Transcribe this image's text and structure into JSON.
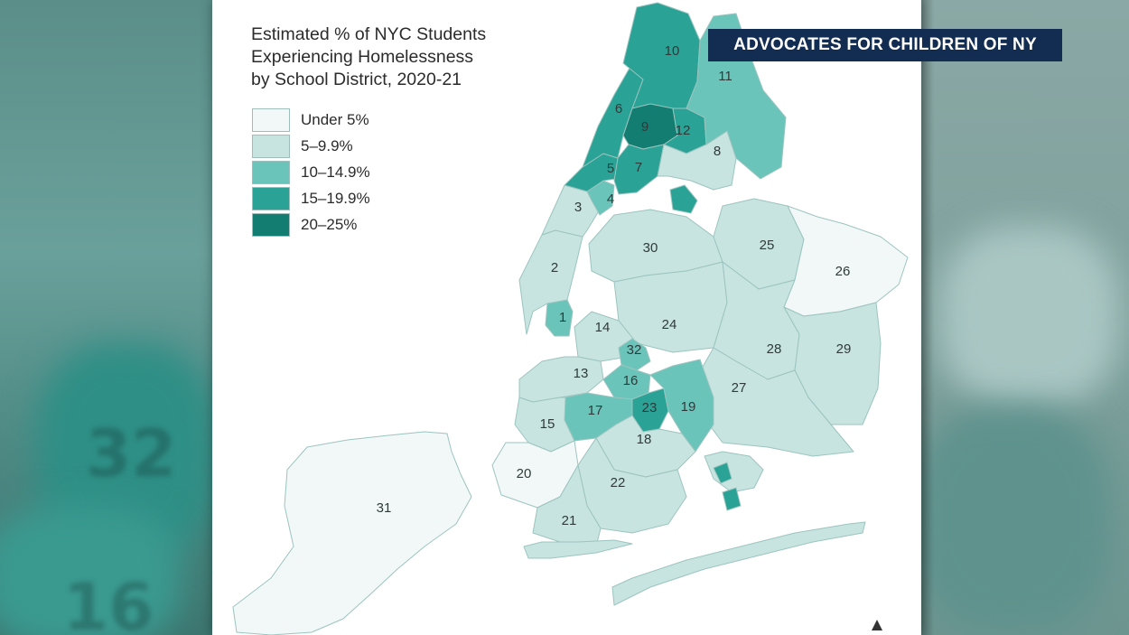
{
  "brand": {
    "label": "ADVOCATES FOR CHILDREN OF NY",
    "color": "#132c52"
  },
  "map": {
    "title_lines": [
      "Estimated % of NYC Students",
      "Experiencing Homelessness",
      "by School District, 2020-21"
    ],
    "legend": [
      {
        "key": "under5",
        "label": "Under 5%",
        "color": "#f1f8f7"
      },
      {
        "key": "5to10",
        "label": "5–9.9%",
        "color": "#c7e4e0"
      },
      {
        "key": "10to15",
        "label": "10–14.9%",
        "color": "#6bc4ba"
      },
      {
        "key": "15to20",
        "label": "15–19.9%",
        "color": "#2aa296"
      },
      {
        "key": "20to25",
        "label": "20–25%",
        "color": "#137d72"
      }
    ],
    "districts": [
      {
        "id": "1",
        "class": "10to15"
      },
      {
        "id": "2",
        "class": "5to10"
      },
      {
        "id": "3",
        "class": "5to10"
      },
      {
        "id": "4",
        "class": "10to15"
      },
      {
        "id": "5",
        "class": "15to20"
      },
      {
        "id": "6",
        "class": "15to20"
      },
      {
        "id": "7",
        "class": "15to20"
      },
      {
        "id": "8",
        "class": "5to10"
      },
      {
        "id": "9",
        "class": "20to25"
      },
      {
        "id": "10",
        "class": "15to20"
      },
      {
        "id": "11",
        "class": "10to15"
      },
      {
        "id": "12",
        "class": "15to20"
      },
      {
        "id": "13",
        "class": "5to10"
      },
      {
        "id": "14",
        "class": "5to10"
      },
      {
        "id": "15",
        "class": "5to10"
      },
      {
        "id": "16",
        "class": "10to15"
      },
      {
        "id": "17",
        "class": "10to15"
      },
      {
        "id": "18",
        "class": "5to10"
      },
      {
        "id": "19",
        "class": "10to15"
      },
      {
        "id": "20",
        "class": "under5"
      },
      {
        "id": "21",
        "class": "5to10"
      },
      {
        "id": "22",
        "class": "5to10"
      },
      {
        "id": "23",
        "class": "15to20"
      },
      {
        "id": "24",
        "class": "5to10"
      },
      {
        "id": "25",
        "class": "5to10"
      },
      {
        "id": "26",
        "class": "under5"
      },
      {
        "id": "27",
        "class": "5to10"
      },
      {
        "id": "28",
        "class": "5to10"
      },
      {
        "id": "29",
        "class": "5to10"
      },
      {
        "id": "30",
        "class": "5to10"
      },
      {
        "id": "31",
        "class": "under5"
      },
      {
        "id": "32",
        "class": "10to15"
      }
    ],
    "background_numbers": [
      "32",
      "16"
    ]
  }
}
